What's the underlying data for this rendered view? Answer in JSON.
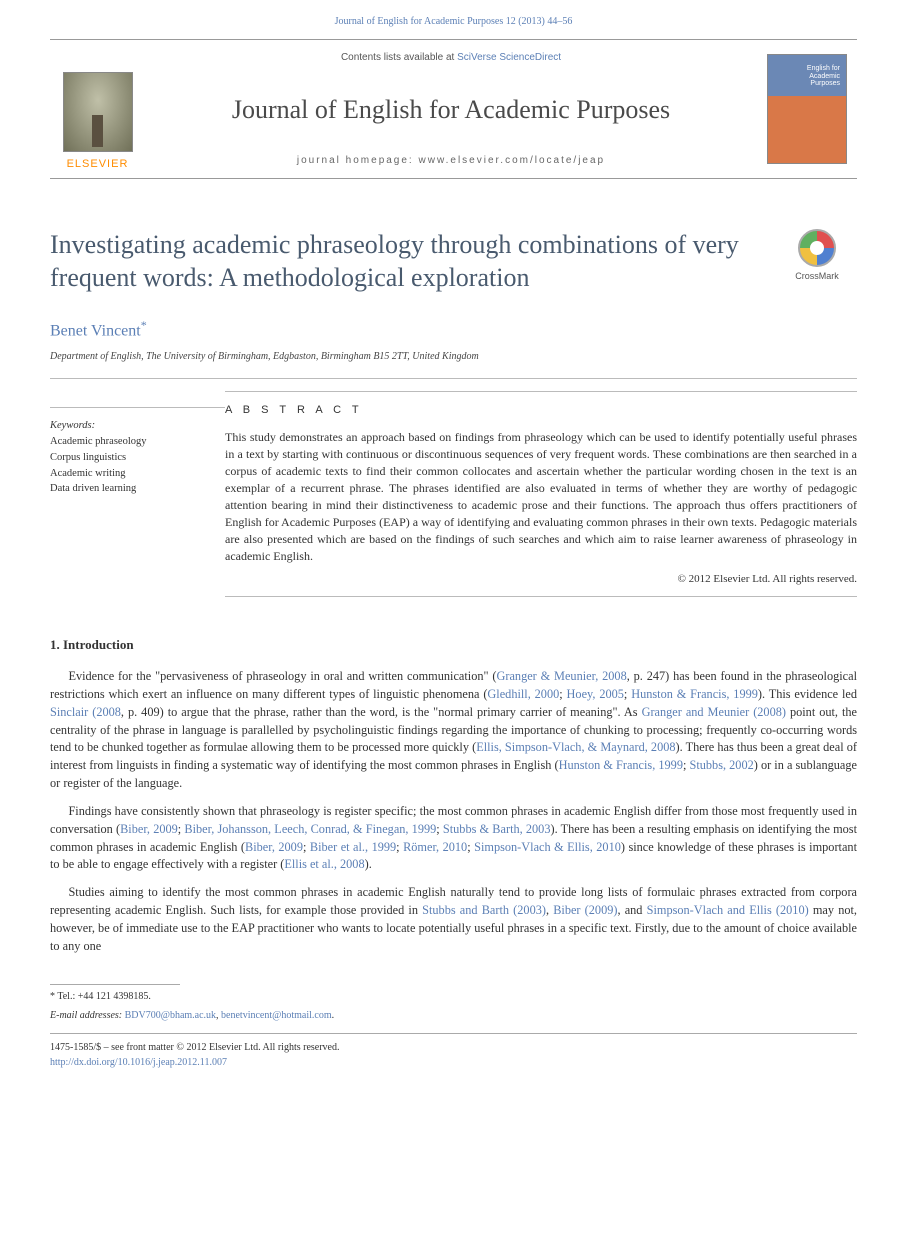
{
  "header": {
    "citation": "Journal of English for Academic Purposes 12 (2013) 44–56",
    "contents_prefix": "Contents lists available at ",
    "contents_link": "SciVerse ScienceDirect",
    "journal_name": "Journal of English for Academic Purposes",
    "homepage_label": "journal homepage: ",
    "homepage_url": "www.elsevier.com/locate/jeap",
    "publisher_label": "ELSEVIER",
    "cover_title_line1": "English for",
    "cover_title_line2": "Academic",
    "cover_title_line3": "Purposes"
  },
  "colors": {
    "link": "#5b7fb5",
    "title": "#495a6e",
    "elsevier_orange": "#ff8c00"
  },
  "article": {
    "title": "Investigating academic phraseology through combinations of very frequent words: A methodological exploration",
    "crossmark_label": "CrossMark",
    "author": "Benet Vincent",
    "author_marker": "*",
    "affiliation": "Department of English, The University of Birmingham, Edgbaston, Birmingham B15 2TT, United Kingdom"
  },
  "keywords": {
    "heading": "Keywords:",
    "items": [
      "Academic phraseology",
      "Corpus linguistics",
      "Academic writing",
      "Data driven learning"
    ]
  },
  "abstract": {
    "heading": "A B S T R A C T",
    "text": "This study demonstrates an approach based on findings from phraseology which can be used to identify potentially useful phrases in a text by starting with continuous or discontinuous sequences of very frequent words. These combinations are then searched in a corpus of academic texts to find their common collocates and ascertain whether the particular wording chosen in the text is an exemplar of a recurrent phrase. The phrases identified are also evaluated in terms of whether they are worthy of pedagogic attention bearing in mind their distinctiveness to academic prose and their functions. The approach thus offers practitioners of English for Academic Purposes (EAP) a way of identifying and evaluating common phrases in their own texts. Pedagogic materials are also presented which are based on the findings of such searches and which aim to raise learner awareness of phraseology in academic English.",
    "copyright": "© 2012 Elsevier Ltd. All rights reserved."
  },
  "body": {
    "section1_heading": "1.  Introduction",
    "p1_a": "Evidence for the \"pervasiveness of phraseology in oral and written communication\" (",
    "p1_cite1": "Granger & Meunier, 2008",
    "p1_b": ", p. 247) has been found in the phraseological restrictions which exert an influence on many different types of linguistic phenomena (",
    "p1_cite2": "Gledhill, 2000",
    "p1_sep1": "; ",
    "p1_cite3": "Hoey, 2005",
    "p1_sep2": "; ",
    "p1_cite4": "Hunston & Francis, 1999",
    "p1_c": "). This evidence led ",
    "p1_cite5": "Sinclair (2008",
    "p1_d": ", p. 409) to argue that the phrase, rather than the word, is the \"normal primary carrier of meaning\". As ",
    "p1_cite6": "Granger and Meunier (2008)",
    "p1_e": " point out, the centrality of the phrase in language is parallelled by psycholinguistic findings regarding the importance of chunking to processing; frequently co-occurring words tend to be chunked together as formulae allowing them to be processed more quickly (",
    "p1_cite7": "Ellis, Simpson-Vlach, & Maynard, 2008",
    "p1_f": "). There has thus been a great deal of interest from linguists in finding a systematic way of identifying the most common phrases in English (",
    "p1_cite8": "Hunston & Francis, 1999",
    "p1_sep3": "; ",
    "p1_cite9": "Stubbs, 2002",
    "p1_g": ") or in a sublanguage or register of the language.",
    "p2_a": "Findings have consistently shown that phraseology is register specific; the most common phrases in academic English differ from those most frequently used in conversation (",
    "p2_cite1": "Biber, 2009",
    "p2_sep1": "; ",
    "p2_cite2": "Biber, Johansson, Leech, Conrad, & Finegan, 1999",
    "p2_sep2": "; ",
    "p2_cite3": "Stubbs & Barth, 2003",
    "p2_b": "). There has been a resulting emphasis on identifying the most common phrases in academic English (",
    "p2_cite4": "Biber, 2009",
    "p2_sep3": "; ",
    "p2_cite5": "Biber et al., 1999",
    "p2_sep4": "; ",
    "p2_cite6": "Römer, 2010",
    "p2_sep5": "; ",
    "p2_cite7": "Simpson-Vlach & Ellis, 2010",
    "p2_c": ") since knowledge of these phrases is important to be able to engage effectively with a register (",
    "p2_cite8": "Ellis et al., 2008",
    "p2_d": ").",
    "p3_a": "Studies aiming to identify the most common phrases in academic English naturally tend to provide long lists of formulaic phrases extracted from corpora representing academic English. Such lists, for example those provided in ",
    "p3_cite1": "Stubbs and Barth (2003)",
    "p3_sep1": ", ",
    "p3_cite2": "Biber (2009)",
    "p3_sep2": ", and ",
    "p3_cite3": "Simpson-Vlach and Ellis (2010)",
    "p3_b": " may not, however, be of immediate use to the EAP practitioner who wants to locate potentially useful phrases in a specific text. Firstly, due to the amount of choice available to any one"
  },
  "footnotes": {
    "tel_label": "* Tel.: ",
    "tel_value": "+44 121 4398185.",
    "email_label": "E-mail addresses: ",
    "email1": "BDV700@bham.ac.uk",
    "email_sep": ", ",
    "email2": "benetvincent@hotmail.com",
    "email_trail": "."
  },
  "front_matter": {
    "line1": "1475-1585/$ – see front matter © 2012 Elsevier Ltd. All rights reserved.",
    "doi_url": "http://dx.doi.org/10.1016/j.jeap.2012.11.007"
  }
}
